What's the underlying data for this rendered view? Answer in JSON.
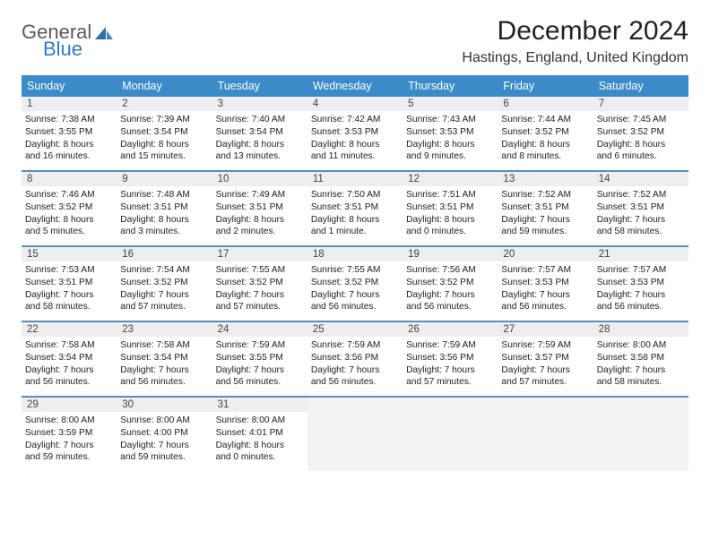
{
  "logo": {
    "word1": "General",
    "word2": "Blue"
  },
  "title": "December 2024",
  "location": "Hastings, England, United Kingdom",
  "colors": {
    "header_bg": "#3b8bc9",
    "header_fg": "#ffffff",
    "daynum_bg": "#eceeef",
    "week_border": "#5b8fb8",
    "empty_bg": "#f3f3f3",
    "logo_gray": "#5a5a5a",
    "logo_blue": "#2f7bbf"
  },
  "dow": [
    "Sunday",
    "Monday",
    "Tuesday",
    "Wednesday",
    "Thursday",
    "Friday",
    "Saturday"
  ],
  "weeks": [
    [
      {
        "n": "1",
        "sr": "Sunrise: 7:38 AM",
        "ss": "Sunset: 3:55 PM",
        "d1": "Daylight: 8 hours",
        "d2": "and 16 minutes."
      },
      {
        "n": "2",
        "sr": "Sunrise: 7:39 AM",
        "ss": "Sunset: 3:54 PM",
        "d1": "Daylight: 8 hours",
        "d2": "and 15 minutes."
      },
      {
        "n": "3",
        "sr": "Sunrise: 7:40 AM",
        "ss": "Sunset: 3:54 PM",
        "d1": "Daylight: 8 hours",
        "d2": "and 13 minutes."
      },
      {
        "n": "4",
        "sr": "Sunrise: 7:42 AM",
        "ss": "Sunset: 3:53 PM",
        "d1": "Daylight: 8 hours",
        "d2": "and 11 minutes."
      },
      {
        "n": "5",
        "sr": "Sunrise: 7:43 AM",
        "ss": "Sunset: 3:53 PM",
        "d1": "Daylight: 8 hours",
        "d2": "and 9 minutes."
      },
      {
        "n": "6",
        "sr": "Sunrise: 7:44 AM",
        "ss": "Sunset: 3:52 PM",
        "d1": "Daylight: 8 hours",
        "d2": "and 8 minutes."
      },
      {
        "n": "7",
        "sr": "Sunrise: 7:45 AM",
        "ss": "Sunset: 3:52 PM",
        "d1": "Daylight: 8 hours",
        "d2": "and 6 minutes."
      }
    ],
    [
      {
        "n": "8",
        "sr": "Sunrise: 7:46 AM",
        "ss": "Sunset: 3:52 PM",
        "d1": "Daylight: 8 hours",
        "d2": "and 5 minutes."
      },
      {
        "n": "9",
        "sr": "Sunrise: 7:48 AM",
        "ss": "Sunset: 3:51 PM",
        "d1": "Daylight: 8 hours",
        "d2": "and 3 minutes."
      },
      {
        "n": "10",
        "sr": "Sunrise: 7:49 AM",
        "ss": "Sunset: 3:51 PM",
        "d1": "Daylight: 8 hours",
        "d2": "and 2 minutes."
      },
      {
        "n": "11",
        "sr": "Sunrise: 7:50 AM",
        "ss": "Sunset: 3:51 PM",
        "d1": "Daylight: 8 hours",
        "d2": "and 1 minute."
      },
      {
        "n": "12",
        "sr": "Sunrise: 7:51 AM",
        "ss": "Sunset: 3:51 PM",
        "d1": "Daylight: 8 hours",
        "d2": "and 0 minutes."
      },
      {
        "n": "13",
        "sr": "Sunrise: 7:52 AM",
        "ss": "Sunset: 3:51 PM",
        "d1": "Daylight: 7 hours",
        "d2": "and 59 minutes."
      },
      {
        "n": "14",
        "sr": "Sunrise: 7:52 AM",
        "ss": "Sunset: 3:51 PM",
        "d1": "Daylight: 7 hours",
        "d2": "and 58 minutes."
      }
    ],
    [
      {
        "n": "15",
        "sr": "Sunrise: 7:53 AM",
        "ss": "Sunset: 3:51 PM",
        "d1": "Daylight: 7 hours",
        "d2": "and 58 minutes."
      },
      {
        "n": "16",
        "sr": "Sunrise: 7:54 AM",
        "ss": "Sunset: 3:52 PM",
        "d1": "Daylight: 7 hours",
        "d2": "and 57 minutes."
      },
      {
        "n": "17",
        "sr": "Sunrise: 7:55 AM",
        "ss": "Sunset: 3:52 PM",
        "d1": "Daylight: 7 hours",
        "d2": "and 57 minutes."
      },
      {
        "n": "18",
        "sr": "Sunrise: 7:55 AM",
        "ss": "Sunset: 3:52 PM",
        "d1": "Daylight: 7 hours",
        "d2": "and 56 minutes."
      },
      {
        "n": "19",
        "sr": "Sunrise: 7:56 AM",
        "ss": "Sunset: 3:52 PM",
        "d1": "Daylight: 7 hours",
        "d2": "and 56 minutes."
      },
      {
        "n": "20",
        "sr": "Sunrise: 7:57 AM",
        "ss": "Sunset: 3:53 PM",
        "d1": "Daylight: 7 hours",
        "d2": "and 56 minutes."
      },
      {
        "n": "21",
        "sr": "Sunrise: 7:57 AM",
        "ss": "Sunset: 3:53 PM",
        "d1": "Daylight: 7 hours",
        "d2": "and 56 minutes."
      }
    ],
    [
      {
        "n": "22",
        "sr": "Sunrise: 7:58 AM",
        "ss": "Sunset: 3:54 PM",
        "d1": "Daylight: 7 hours",
        "d2": "and 56 minutes."
      },
      {
        "n": "23",
        "sr": "Sunrise: 7:58 AM",
        "ss": "Sunset: 3:54 PM",
        "d1": "Daylight: 7 hours",
        "d2": "and 56 minutes."
      },
      {
        "n": "24",
        "sr": "Sunrise: 7:59 AM",
        "ss": "Sunset: 3:55 PM",
        "d1": "Daylight: 7 hours",
        "d2": "and 56 minutes."
      },
      {
        "n": "25",
        "sr": "Sunrise: 7:59 AM",
        "ss": "Sunset: 3:56 PM",
        "d1": "Daylight: 7 hours",
        "d2": "and 56 minutes."
      },
      {
        "n": "26",
        "sr": "Sunrise: 7:59 AM",
        "ss": "Sunset: 3:56 PM",
        "d1": "Daylight: 7 hours",
        "d2": "and 57 minutes."
      },
      {
        "n": "27",
        "sr": "Sunrise: 7:59 AM",
        "ss": "Sunset: 3:57 PM",
        "d1": "Daylight: 7 hours",
        "d2": "and 57 minutes."
      },
      {
        "n": "28",
        "sr": "Sunrise: 8:00 AM",
        "ss": "Sunset: 3:58 PM",
        "d1": "Daylight: 7 hours",
        "d2": "and 58 minutes."
      }
    ],
    [
      {
        "n": "29",
        "sr": "Sunrise: 8:00 AM",
        "ss": "Sunset: 3:59 PM",
        "d1": "Daylight: 7 hours",
        "d2": "and 59 minutes."
      },
      {
        "n": "30",
        "sr": "Sunrise: 8:00 AM",
        "ss": "Sunset: 4:00 PM",
        "d1": "Daylight: 7 hours",
        "d2": "and 59 minutes."
      },
      {
        "n": "31",
        "sr": "Sunrise: 8:00 AM",
        "ss": "Sunset: 4:01 PM",
        "d1": "Daylight: 8 hours",
        "d2": "and 0 minutes."
      },
      {
        "empty": true
      },
      {
        "empty": true
      },
      {
        "empty": true
      },
      {
        "empty": true
      }
    ]
  ]
}
